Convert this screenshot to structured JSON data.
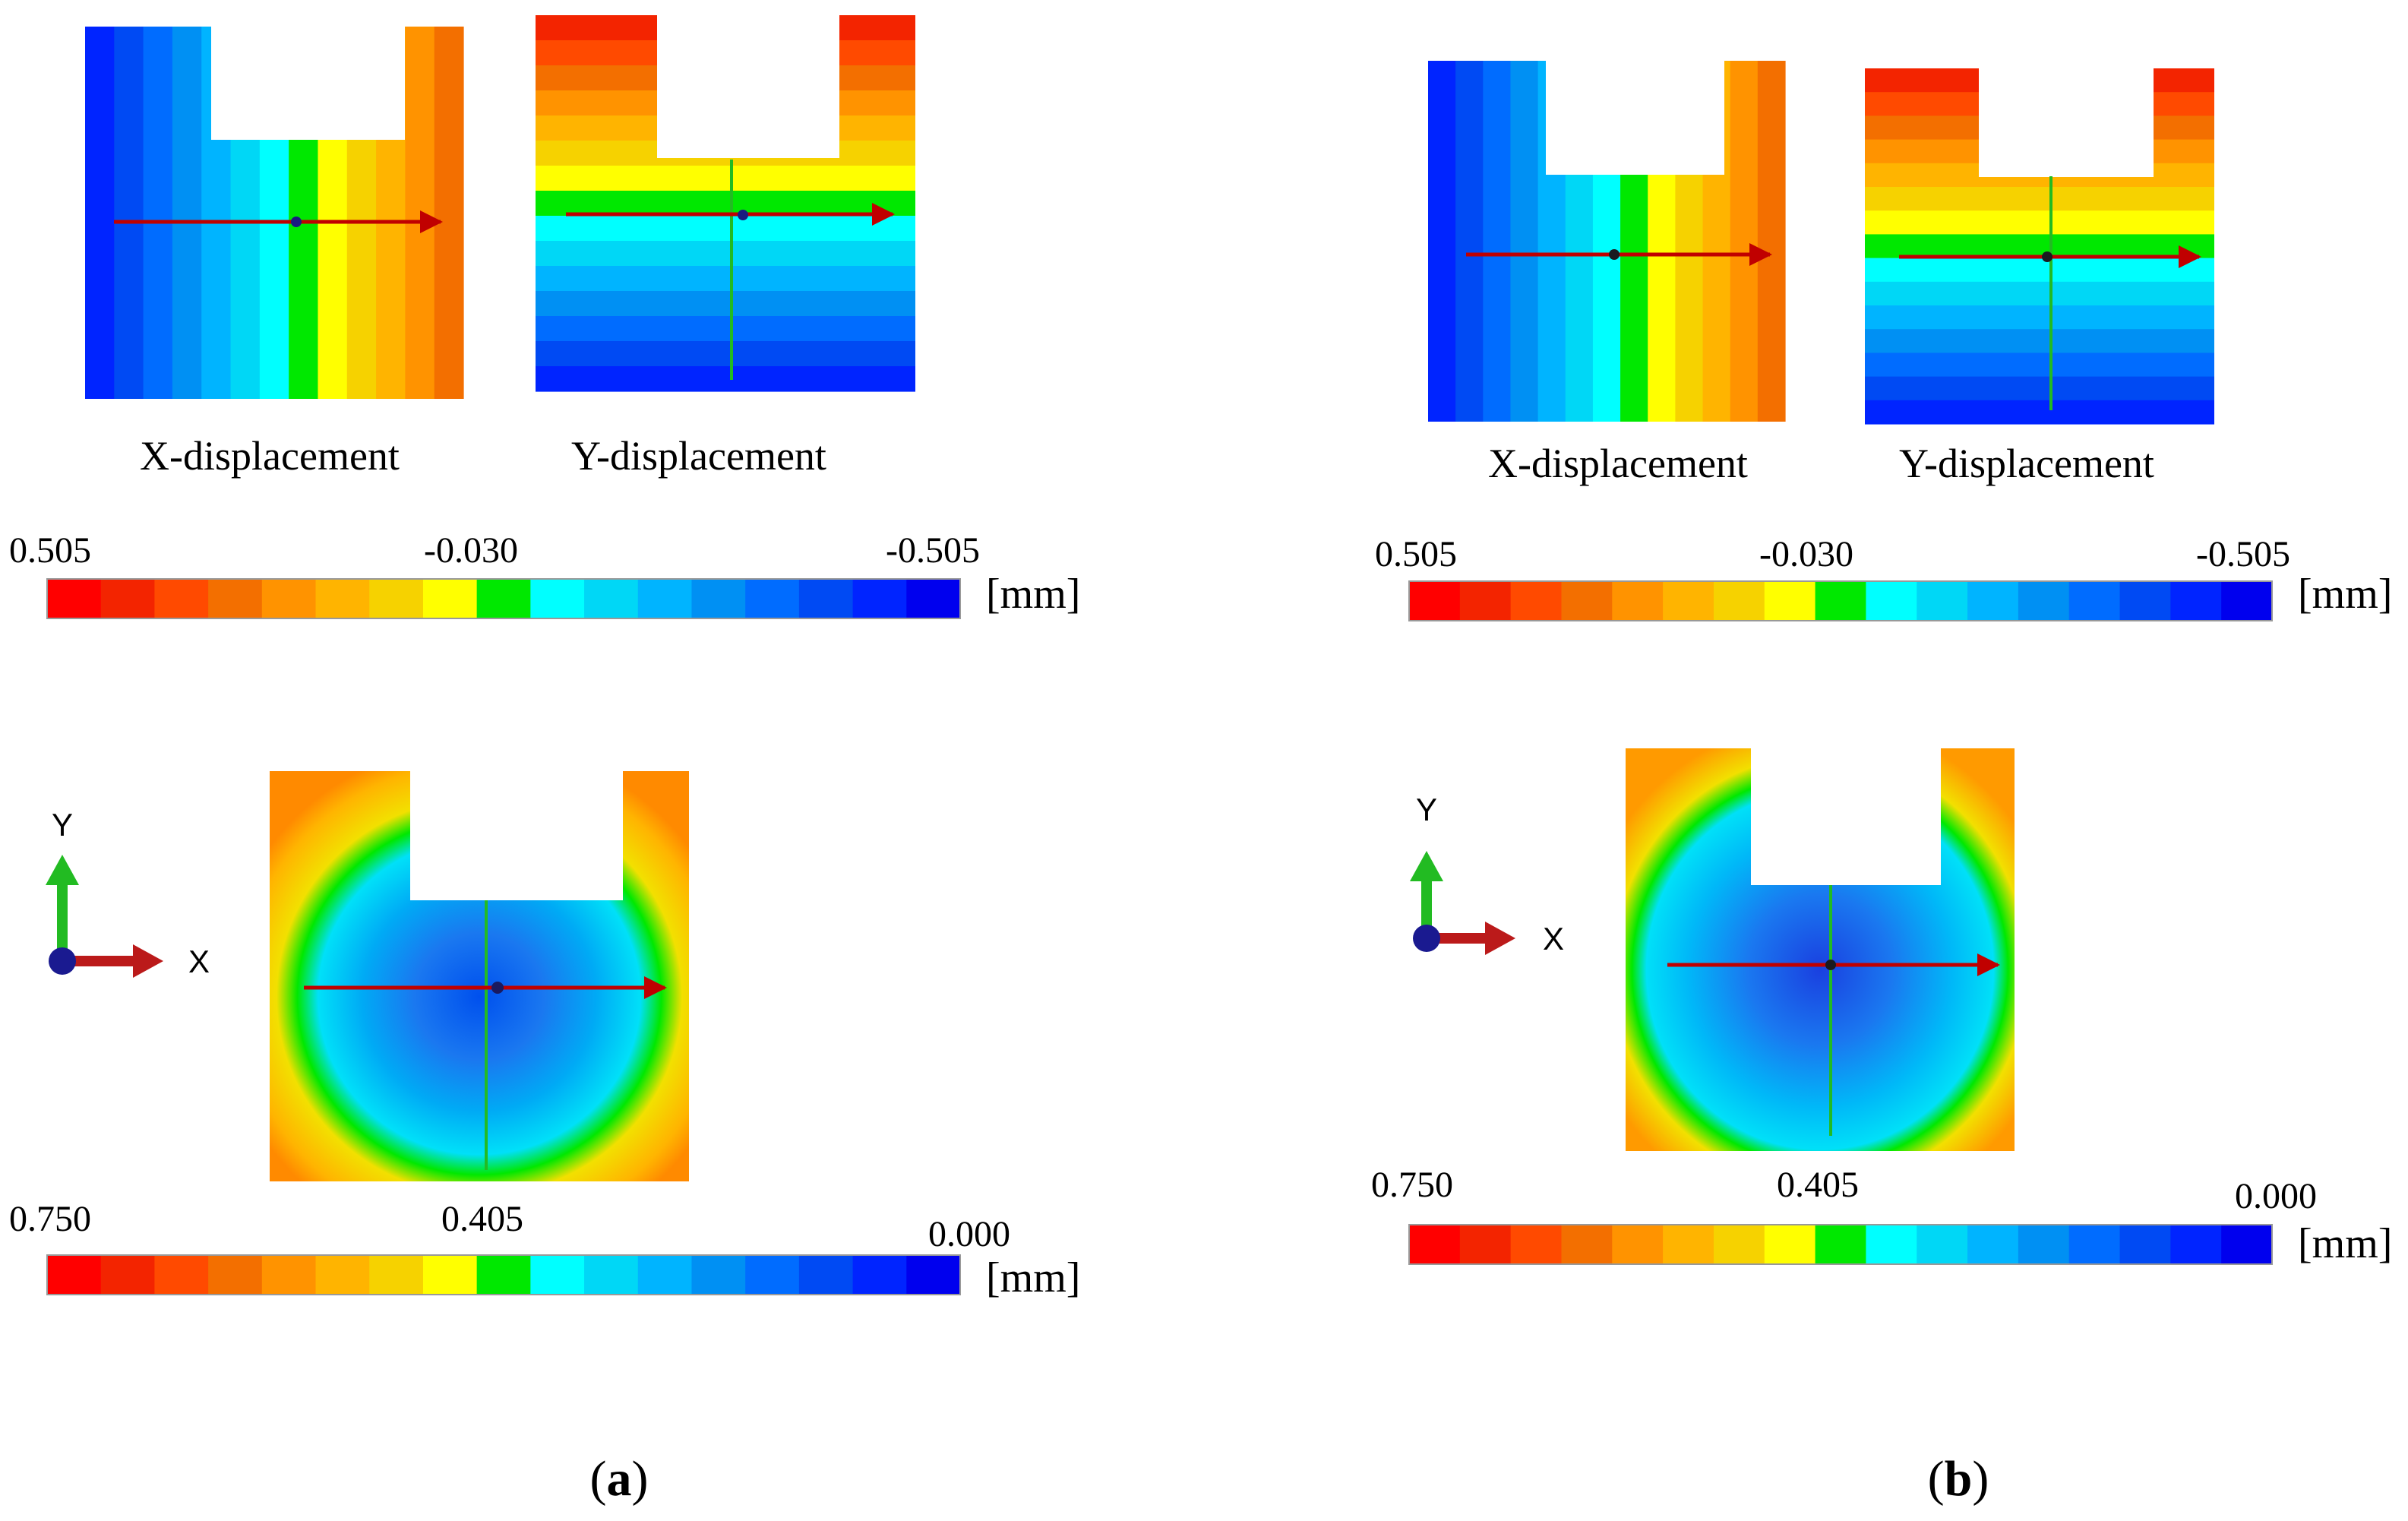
{
  "panels": [
    {
      "label_text": "a",
      "displacement_labels": [
        "X-displacement",
        "Y-displacement"
      ],
      "scale_top": {
        "max": "0.505",
        "mid": "-0.030",
        "min": "-0.505",
        "unit": "[mm]"
      },
      "scale_bottom": {
        "max": "0.750",
        "mid": "0.405",
        "min": "0.000",
        "unit": "[mm]"
      },
      "axes": {
        "x": "X",
        "y": "Y"
      }
    },
    {
      "label_text": "b",
      "displacement_labels": [
        "X-displacement",
        "Y-displacement"
      ],
      "scale_top": {
        "max": "0.505",
        "mid": "-0.030",
        "min": "-0.505",
        "unit": "[mm]"
      },
      "scale_bottom": {
        "max": "0.750",
        "mid": "0.405",
        "min": "0.000",
        "unit": "[mm]"
      },
      "axes": {
        "x": "X",
        "y": "Y"
      }
    }
  ],
  "colormap": [
    "#ff0000",
    "#f32400",
    "#ff4a00",
    "#f36f00",
    "#ff9300",
    "#ffb400",
    "#f6d200",
    "#ffff00",
    "#00e800",
    "#00ffff",
    "#00d7f6",
    "#00b4ff",
    "#0090f3",
    "#006cff",
    "#004af3",
    "#0024ff",
    "#0000ee"
  ]
}
